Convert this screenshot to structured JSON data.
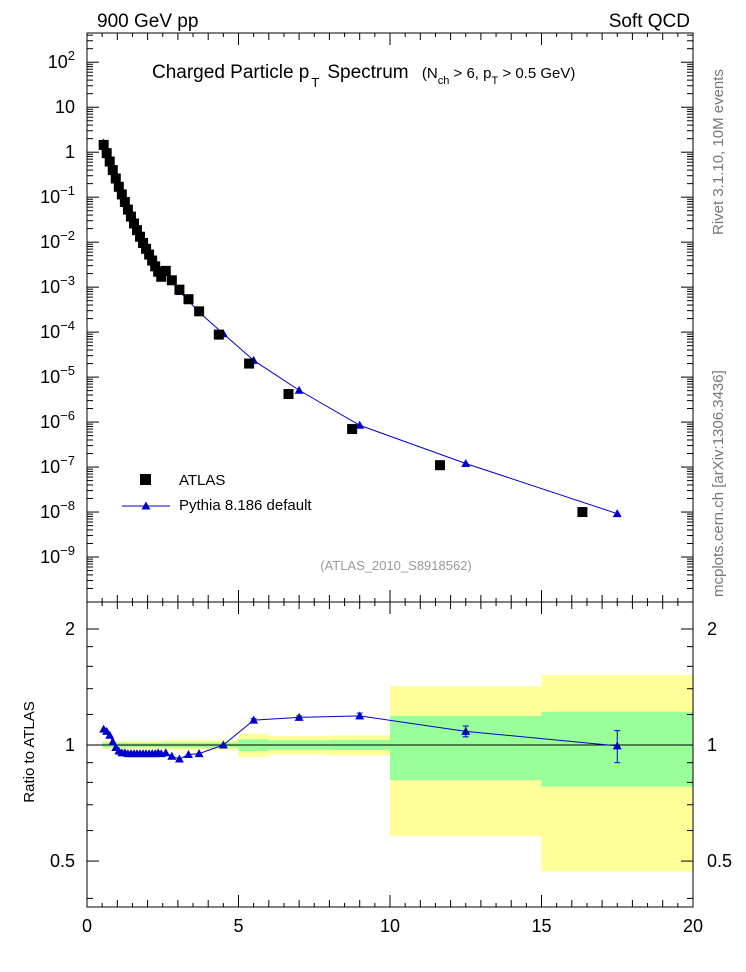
{
  "header": {
    "left": "900 GeV pp",
    "right": "Soft QCD"
  },
  "side_text": {
    "rivet": "Rivet 3.1.10, 10M events",
    "mcplots": "mcplots.cern.ch [arXiv:1306.3436]"
  },
  "chart_data": [
    {
      "type": "scatter",
      "title": "Charged Particle p_T Spectrum (N_ch > 6, p_T > 0.5 GeV)",
      "title_main": "Charged Particle p",
      "title_sub_T": "T",
      "title_main_2": "Spectrum",
      "title_paren": {
        "open": "(N",
        "sub_ch": "ch",
        "mid": " > 6, p",
        "sub_T": "T",
        "close": " > 0.5 GeV)"
      },
      "annotation": "(ATLAS_2010_S8918562)",
      "xlim": [
        0,
        20
      ],
      "ylim_log10": [
        -10.0,
        2.65
      ],
      "yscale": "log",
      "y_tick_labels": [
        {
          "exp": 2,
          "text": "10",
          "sup": "2"
        },
        {
          "exp": 1,
          "text": "10",
          "sup": ""
        },
        {
          "exp": 0,
          "text": "1",
          "sup": ""
        },
        {
          "exp": -1,
          "text": "10",
          "sup": "−1"
        },
        {
          "exp": -2,
          "text": "10",
          "sup": "−2"
        },
        {
          "exp": -3,
          "text": "10",
          "sup": "−3"
        },
        {
          "exp": -4,
          "text": "10",
          "sup": "−4"
        },
        {
          "exp": -5,
          "text": "10",
          "sup": "−5"
        },
        {
          "exp": -6,
          "text": "10",
          "sup": "−6"
        },
        {
          "exp": -7,
          "text": "10",
          "sup": "−7"
        },
        {
          "exp": -8,
          "text": "10",
          "sup": "−8"
        },
        {
          "exp": -9,
          "text": "10",
          "sup": "−9"
        }
      ],
      "legend_position": "lower-left",
      "series": [
        {
          "name": "ATLAS",
          "marker": "square",
          "color": "#000000",
          "x": [
            0.55,
            0.65,
            0.75,
            0.85,
            0.95,
            1.05,
            1.15,
            1.25,
            1.35,
            1.45,
            1.55,
            1.65,
            1.75,
            1.85,
            1.95,
            2.05,
            2.15,
            2.25,
            2.35,
            2.45,
            2.6,
            2.8,
            3.05,
            3.35,
            3.7,
            4.35,
            5.35,
            6.65,
            8.75,
            11.65,
            16.35
          ],
          "y": [
            1.45,
            0.95,
            0.62,
            0.4,
            0.26,
            0.17,
            0.115,
            0.078,
            0.053,
            0.037,
            0.026,
            0.0185,
            0.0132,
            0.0096,
            0.0071,
            0.0053,
            0.0039,
            0.0029,
            0.0022,
            0.0017,
            0.0023,
            0.00142,
            0.00088,
            0.00054,
            0.00029,
            8.8e-05,
            2e-05,
            4.2e-06,
            7e-07,
            1.1e-07,
            1e-08
          ]
        },
        {
          "name": "Pythia 8.186 default",
          "marker": "triangle",
          "color": "#0000cc",
          "x": [
            0.55,
            0.65,
            0.75,
            0.85,
            0.95,
            1.05,
            1.15,
            1.25,
            1.35,
            1.45,
            1.55,
            1.65,
            1.75,
            1.85,
            1.95,
            2.05,
            2.15,
            2.25,
            2.35,
            2.45,
            2.6,
            2.8,
            3.05,
            3.35,
            3.7,
            4.5,
            5.5,
            7.0,
            9.0,
            12.5,
            17.5
          ],
          "y": [
            1.6,
            1.02,
            0.645,
            0.41,
            0.26,
            0.166,
            0.11,
            0.075,
            0.051,
            0.0355,
            0.025,
            0.0178,
            0.0127,
            0.0092,
            0.0068,
            0.0051,
            0.0037,
            0.0028,
            0.0021,
            0.0016,
            0.0022,
            0.00136,
            0.0008,
            0.0005,
            0.000276,
            9.2e-05,
            2.35e-05,
            5.1e-06,
            8.5e-07,
            1.2e-07,
            9.2e-09
          ]
        }
      ]
    },
    {
      "type": "line",
      "ylabel": "Ratio to ATLAS",
      "xlim": [
        0,
        20
      ],
      "ylim": [
        0.38,
        2.35
      ],
      "y_ticks": [
        0.5,
        1,
        2
      ],
      "y_tick_labels": [
        "0.5",
        "1",
        "2"
      ],
      "x_ticks": [
        0,
        5,
        10,
        15,
        20
      ],
      "x_tick_labels": [
        "0",
        "5",
        "10",
        "15",
        "20"
      ],
      "bands": [
        {
          "x0": 0.5,
          "x1": 2.5,
          "yellow": [
            0.975,
            1.025
          ],
          "green": [
            0.987,
            1.013
          ]
        },
        {
          "x0": 2.5,
          "x1": 5.0,
          "yellow": [
            0.97,
            1.03
          ],
          "green": [
            0.985,
            1.015
          ]
        },
        {
          "x0": 5.0,
          "x1": 6.0,
          "yellow": [
            0.93,
            1.07
          ],
          "green": [
            0.965,
            1.035
          ]
        },
        {
          "x0": 6.0,
          "x1": 8.0,
          "yellow": [
            0.945,
            1.055
          ],
          "green": [
            0.972,
            1.028
          ]
        },
        {
          "x0": 8.0,
          "x1": 10.0,
          "yellow": [
            0.94,
            1.06
          ],
          "green": [
            0.97,
            1.03
          ]
        },
        {
          "x0": 10.0,
          "x1": 15.0,
          "yellow": [
            0.58,
            1.42
          ],
          "green": [
            0.81,
            1.19
          ]
        },
        {
          "x0": 15.0,
          "x1": 20.0,
          "yellow": [
            0.47,
            1.52
          ],
          "green": [
            0.78,
            1.22
          ]
        }
      ],
      "series": [
        {
          "name": "Pythia 8.186 default",
          "color": "#0000cc",
          "x": [
            0.55,
            0.65,
            0.75,
            0.85,
            0.95,
            1.05,
            1.15,
            1.25,
            1.35,
            1.45,
            1.55,
            1.65,
            1.75,
            1.85,
            1.95,
            2.05,
            2.15,
            2.25,
            2.35,
            2.45,
            2.6,
            2.8,
            3.05,
            3.35,
            3.7,
            4.5,
            5.5,
            7.0,
            9.0,
            12.5,
            17.5
          ],
          "y": [
            1.1,
            1.085,
            1.06,
            1.02,
            0.985,
            0.965,
            0.955,
            0.955,
            0.95,
            0.95,
            0.95,
            0.95,
            0.95,
            0.95,
            0.95,
            0.95,
            0.95,
            0.95,
            0.955,
            0.95,
            0.955,
            0.935,
            0.92,
            0.945,
            0.95,
            1.0,
            1.16,
            1.18,
            1.19,
            1.085,
            0.995
          ],
          "yerr": [
            0,
            0,
            0,
            0,
            0,
            0,
            0,
            0,
            0,
            0,
            0,
            0,
            0,
            0,
            0,
            0,
            0,
            0,
            0,
            0,
            0,
            0,
            0,
            0,
            0,
            0,
            0.01,
            0.01,
            0.02,
            0.035,
            0.095
          ]
        }
      ]
    }
  ]
}
